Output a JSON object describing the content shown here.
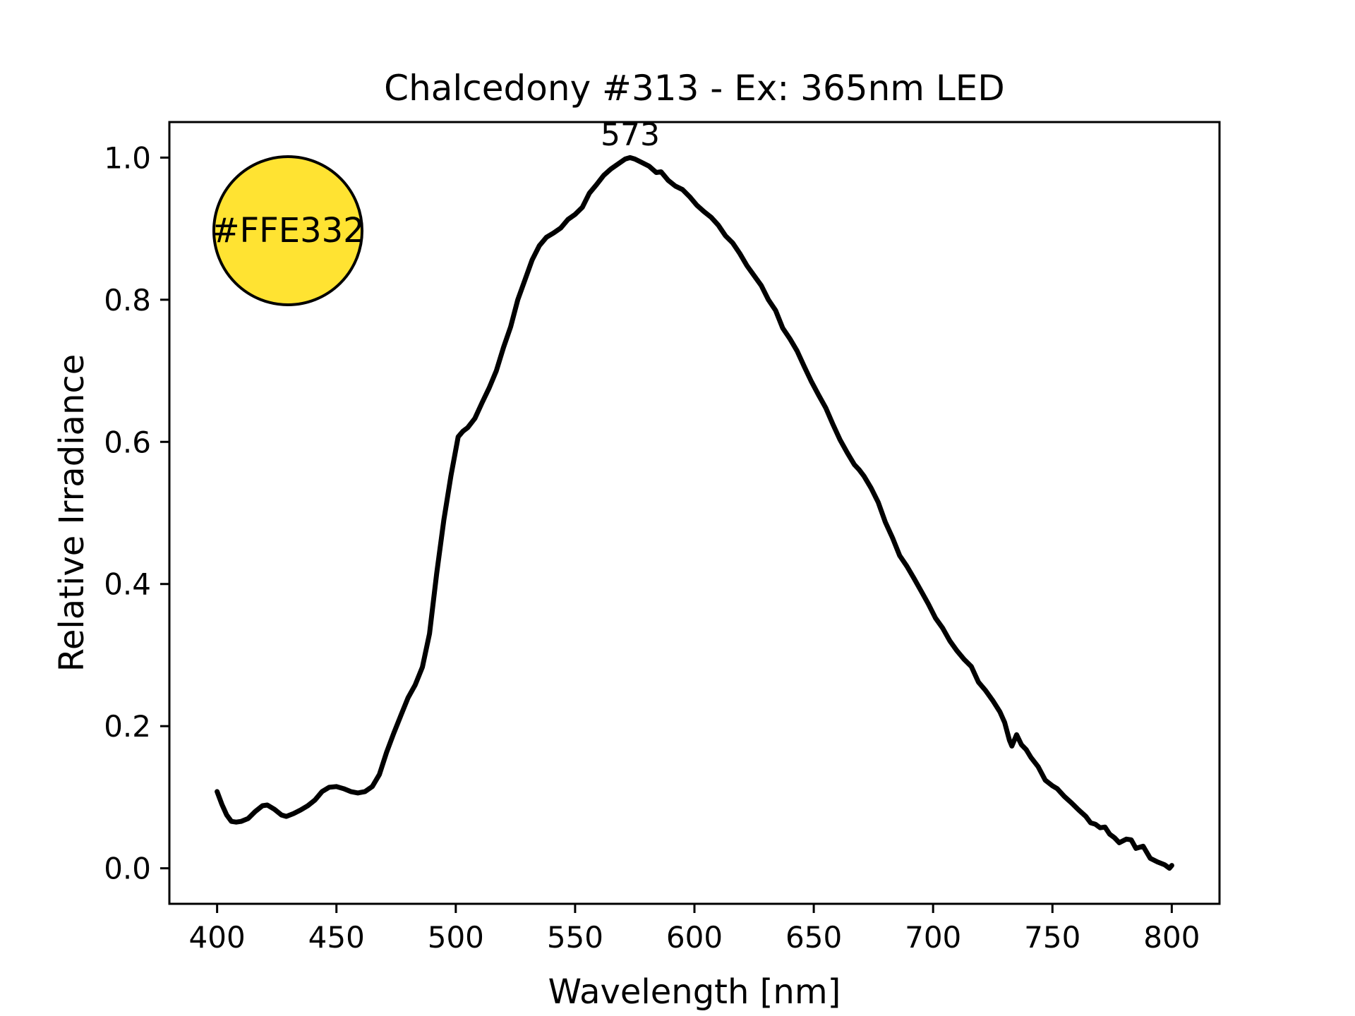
{
  "chart": {
    "title": "Chalcedony #313 - Ex: 365nm LED",
    "xlabel": "Wavelength [nm]",
    "ylabel": "Relative Irradiance",
    "peak_label": "573"
  },
  "swatch": {
    "label": "#FFE332",
    "fill": "#FFE332",
    "border": "#000000"
  },
  "chart_data": {
    "type": "line",
    "title": "Chalcedony #313 - Ex: 365nm LED",
    "xlabel": "Wavelength [nm]",
    "ylabel": "Relative Irradiance",
    "grid": false,
    "legend": "none",
    "xlim": [
      380,
      820
    ],
    "ylim": [
      -0.05,
      1.05
    ],
    "xticks": [
      400,
      450,
      500,
      550,
      600,
      650,
      700,
      750,
      800
    ],
    "yticks": [
      "0.0",
      "0.2",
      "0.4",
      "0.6",
      "0.8",
      "1.0"
    ],
    "line_color": "#000000",
    "line_width": 7,
    "annotations": [
      {
        "text": "573",
        "x": 573,
        "y": 1.0
      }
    ],
    "series": [
      {
        "name": "emission spectrum",
        "color": "#000000",
        "x": [
          400,
          402,
          404,
          406,
          408,
          410,
          413,
          416,
          419,
          421,
          424,
          427,
          429,
          432,
          435,
          438,
          441,
          444,
          447,
          450,
          453,
          456,
          459,
          462,
          465,
          468,
          471,
          474,
          477,
          480,
          483,
          486,
          489,
          492,
          495,
          498,
          501,
          503,
          505,
          508,
          511,
          514,
          517,
          520,
          523,
          526,
          529,
          532,
          535,
          538,
          541,
          544,
          547,
          550,
          553,
          556,
          559,
          562,
          565,
          568,
          571,
          573,
          575,
          578,
          581,
          584,
          586,
          589,
          592,
          595,
          598,
          601,
          604,
          607,
          610,
          613,
          616,
          619,
          622,
          625,
          628,
          631,
          634,
          637,
          640,
          643,
          646,
          649,
          652,
          655,
          658,
          661,
          664,
          667,
          669,
          671,
          674,
          677,
          680,
          683,
          686,
          689,
          692,
          695,
          698,
          701,
          704,
          707,
          710,
          713,
          716,
          719,
          722,
          725,
          728,
          730,
          732,
          733,
          735,
          737,
          739,
          741,
          744,
          747,
          750,
          752,
          755,
          758,
          761,
          764,
          766,
          768,
          770,
          772,
          774,
          776,
          778,
          781,
          783,
          785,
          788,
          791,
          794,
          797,
          799,
          800
        ],
        "y": [
          0.108,
          0.09,
          0.075,
          0.066,
          0.065,
          0.066,
          0.07,
          0.08,
          0.088,
          0.089,
          0.083,
          0.075,
          0.073,
          0.077,
          0.082,
          0.088,
          0.096,
          0.108,
          0.114,
          0.115,
          0.112,
          0.108,
          0.106,
          0.108,
          0.115,
          0.132,
          0.163,
          0.19,
          0.215,
          0.24,
          0.258,
          0.283,
          0.33,
          0.415,
          0.49,
          0.553,
          0.607,
          0.615,
          0.62,
          0.633,
          0.655,
          0.676,
          0.7,
          0.733,
          0.762,
          0.8,
          0.828,
          0.856,
          0.876,
          0.888,
          0.894,
          0.901,
          0.913,
          0.92,
          0.93,
          0.95,
          0.962,
          0.975,
          0.984,
          0.991,
          0.998,
          1.0,
          0.998,
          0.993,
          0.988,
          0.979,
          0.98,
          0.968,
          0.96,
          0.955,
          0.945,
          0.933,
          0.924,
          0.916,
          0.905,
          0.89,
          0.88,
          0.865,
          0.848,
          0.834,
          0.82,
          0.8,
          0.785,
          0.76,
          0.745,
          0.728,
          0.706,
          0.685,
          0.666,
          0.648,
          0.625,
          0.603,
          0.585,
          0.568,
          0.561,
          0.552,
          0.535,
          0.515,
          0.487,
          0.465,
          0.44,
          0.425,
          0.408,
          0.39,
          0.372,
          0.352,
          0.338,
          0.32,
          0.306,
          0.294,
          0.284,
          0.262,
          0.25,
          0.236,
          0.22,
          0.205,
          0.18,
          0.172,
          0.188,
          0.174,
          0.167,
          0.156,
          0.143,
          0.124,
          0.116,
          0.112,
          0.101,
          0.092,
          0.082,
          0.073,
          0.064,
          0.062,
          0.057,
          0.058,
          0.048,
          0.043,
          0.036,
          0.041,
          0.04,
          0.028,
          0.031,
          0.014,
          0.009,
          0.005,
          0.0,
          0.004
        ]
      }
    ]
  }
}
